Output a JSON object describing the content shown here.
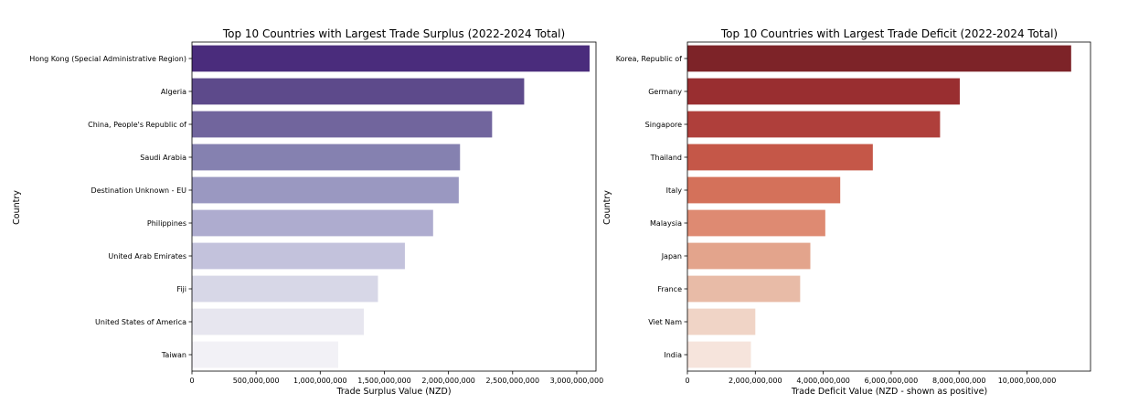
{
  "chart_data": [
    {
      "type": "bar",
      "orientation": "horizontal",
      "title": "Top 10 Countries with Largest Trade Surplus (2022-2024 Total)",
      "xlabel": "Trade Surplus Value (NZD)",
      "ylabel": "Country",
      "xlim": [
        0,
        3150000000
      ],
      "xticks": [
        0,
        500000000,
        1000000000,
        1500000000,
        2000000000,
        2500000000,
        3000000000
      ],
      "xtick_labels": [
        "0",
        "500,000,000",
        "1,000,000,000",
        "1,500,000,000",
        "2,000,000,000",
        "2,500,000,000",
        "3,000,000,000"
      ],
      "categories": [
        "Hong Kong (Special Administrative Region)",
        "Algeria",
        "China, People's Republic of",
        "Saudi Arabia",
        "Destination Unknown - EU",
        "Philippines",
        "United Arab Emirates",
        "Fiji",
        "United States of America",
        "Taiwan"
      ],
      "values": [
        3100000000,
        2590000000,
        2340000000,
        2090000000,
        2080000000,
        1880000000,
        1660000000,
        1450000000,
        1340000000,
        1140000000
      ],
      "colors": [
        "#4a2c7c",
        "#5d4a8b",
        "#71659d",
        "#8581b0",
        "#9a98c1",
        "#aeaccf",
        "#c3c2dc",
        "#d7d7e7",
        "#e7e6ef",
        "#f2f1f6"
      ],
      "grid": false,
      "legend": "none"
    },
    {
      "type": "bar",
      "orientation": "horizontal",
      "title": "Top 10 Countries with Largest Trade Deficit (2022-2024 Total)",
      "xlabel": "Trade Deficit Value (NZD - shown as positive)",
      "ylabel": "Country",
      "xlim": [
        0,
        11870000000
      ],
      "xticks": [
        0,
        2000000000,
        4000000000,
        6000000000,
        8000000000,
        10000000000
      ],
      "xtick_labels": [
        "0",
        "2,000,000,000",
        "4,000,000,000",
        "6,000,000,000",
        "8,000,000,000",
        "10,000,000,000"
      ],
      "categories": [
        "Korea, Republic of",
        "Germany",
        "Singapore",
        "Thailand",
        "Italy",
        "Malaysia",
        "Japan",
        "France",
        "Viet Nam",
        "India"
      ],
      "values": [
        11300000000,
        8020000000,
        7440000000,
        5460000000,
        4500000000,
        4060000000,
        3620000000,
        3320000000,
        2000000000,
        1870000000
      ],
      "colors": [
        "#7d2328",
        "#992e30",
        "#af3f3b",
        "#c55748",
        "#d4715a",
        "#de8a72",
        "#e3a48c",
        "#e8bba7",
        "#f0d4c6",
        "#f6e4dc"
      ],
      "grid": false,
      "legend": "none"
    }
  ]
}
